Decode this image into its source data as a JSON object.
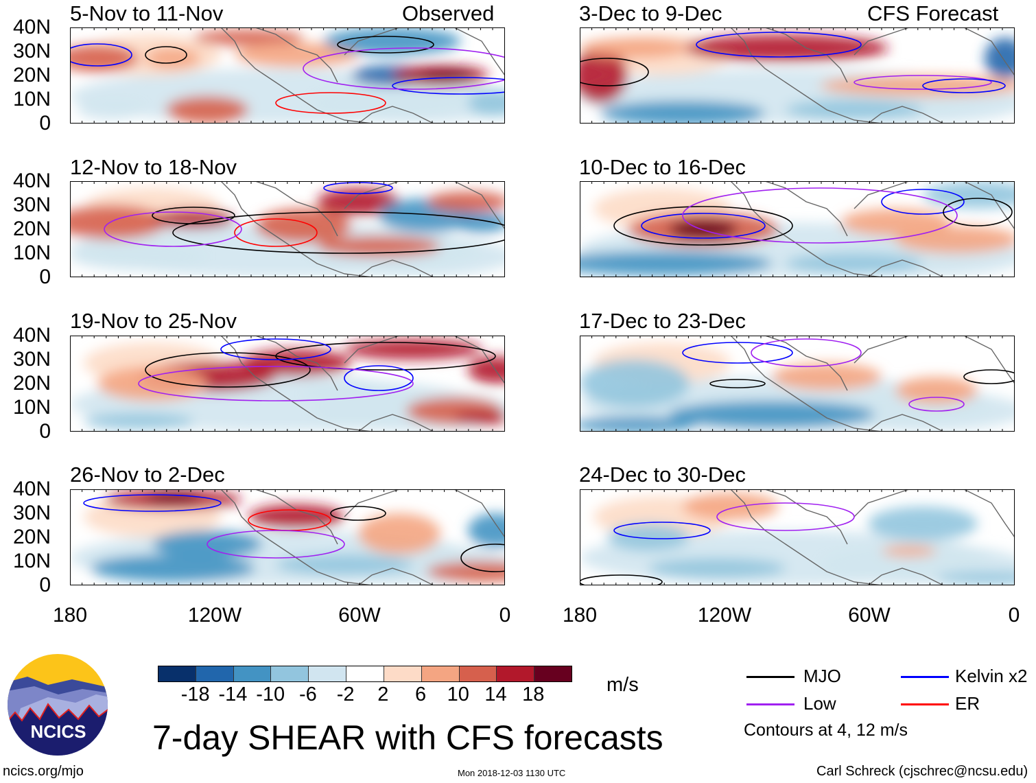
{
  "panels_left_header": "Observed",
  "panels_right_header": "CFS Forecast",
  "panels": [
    {
      "title": "5-Nov to 11-Nov",
      "group": "observed"
    },
    {
      "title": "12-Nov to 18-Nov",
      "group": "observed"
    },
    {
      "title": "19-Nov to 25-Nov",
      "group": "observed"
    },
    {
      "title": "26-Nov to 2-Dec",
      "group": "observed"
    },
    {
      "title": "3-Dec to 9-Dec",
      "group": "forecast"
    },
    {
      "title": "10-Dec to 16-Dec",
      "group": "forecast"
    },
    {
      "title": "17-Dec to 23-Dec",
      "group": "forecast"
    },
    {
      "title": "24-Dec to 30-Dec",
      "group": "forecast"
    }
  ],
  "y_ticks": [
    "40N",
    "30N",
    "20N",
    "10N",
    "0"
  ],
  "x_ticks": [
    "180",
    "120W",
    "60W",
    "0"
  ],
  "colorbar": {
    "colors": [
      "#08306b",
      "#2166ac",
      "#4393c3",
      "#92c5de",
      "#d1e5f0",
      "#ffffff",
      "#fddbc7",
      "#f4a582",
      "#d6604d",
      "#b2182b",
      "#67001f"
    ],
    "labels": [
      "-18",
      "-14",
      "-10",
      "-6",
      "-2",
      "2",
      "6",
      "10",
      "14",
      "18"
    ],
    "units": "m/s"
  },
  "legend": {
    "items": [
      {
        "label": "MJO",
        "color": "#000000"
      },
      {
        "label": "Kelvin x2",
        "color": "#0000ff"
      },
      {
        "label": "Low",
        "color": "#a020f0"
      },
      {
        "label": "ER",
        "color": "#ff0000"
      }
    ],
    "note": "Contours at 4, 12 m/s"
  },
  "title": "7-day SHEAR with CFS forecasts",
  "logo_text": "NCICS",
  "footer": {
    "left": "ncics.org/mjo",
    "center": "Mon 2018-12-03 1130 UTC",
    "right": "Carl Schreck (cjschrec@ncsu.edu)"
  }
}
